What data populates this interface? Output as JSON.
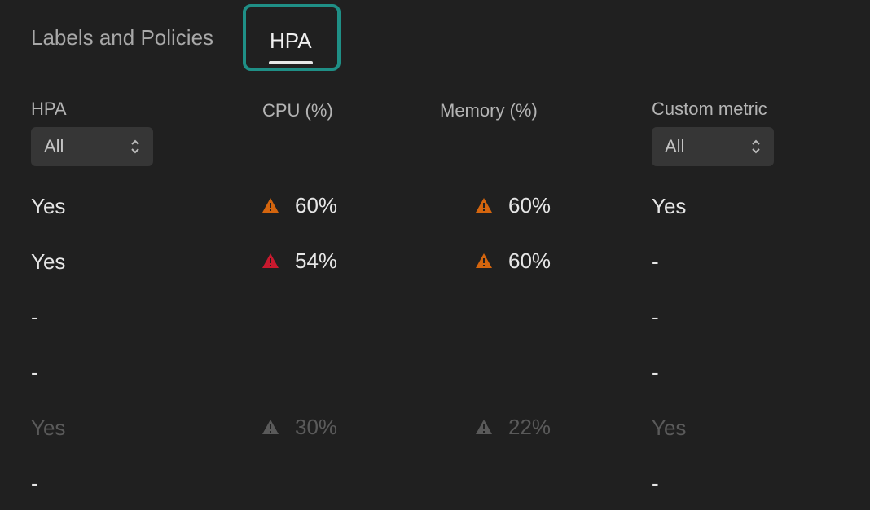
{
  "tabs": {
    "labels_policies": "Labels and Policies",
    "hpa": "HPA"
  },
  "columns": {
    "hpa": "HPA",
    "cpu": "CPU (%)",
    "memory": "Memory (%)",
    "custom": "Custom metric"
  },
  "filters": {
    "hpa": "All",
    "custom": "All"
  },
  "colors": {
    "warning_orange": "#d4650e",
    "error_red": "#c8192e",
    "disabled_gray": "#5a5a5a",
    "accent_teal": "#1f8f86"
  },
  "rows": [
    {
      "hpa": "Yes",
      "cpu": "60%",
      "cpu_status": "warning",
      "memory": "60%",
      "memory_status": "warning",
      "custom": "Yes",
      "disabled": false
    },
    {
      "hpa": "Yes",
      "cpu": "54%",
      "cpu_status": "error",
      "memory": "60%",
      "memory_status": "warning",
      "custom": "-",
      "disabled": false
    },
    {
      "hpa": "-",
      "cpu": "",
      "cpu_status": "none",
      "memory": "",
      "memory_status": "none",
      "custom": "-",
      "disabled": false
    },
    {
      "hpa": "-",
      "cpu": "",
      "cpu_status": "none",
      "memory": "",
      "memory_status": "none",
      "custom": "-",
      "disabled": false
    },
    {
      "hpa": "Yes",
      "cpu": "30%",
      "cpu_status": "warning",
      "memory": "22%",
      "memory_status": "warning",
      "custom": "Yes",
      "disabled": true
    },
    {
      "hpa": "-",
      "cpu": "",
      "cpu_status": "none",
      "memory": "",
      "memory_status": "none",
      "custom": "-",
      "disabled": false
    }
  ]
}
